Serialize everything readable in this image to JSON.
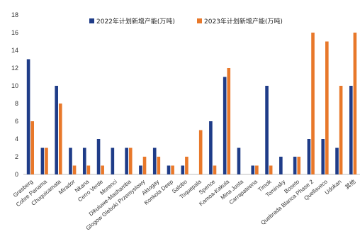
{
  "chart_data": {
    "type": "bar",
    "categories": [
      "Grasberg",
      "Cobre Panama",
      "Chuquicamata",
      "Mirador",
      "Nkana",
      "Cerro Verde",
      "Morenci",
      "Dikuluwe-Mashamba",
      "Glogow Gleboki Przemyslowy",
      "Aktogay",
      "Konkola Deep",
      "Salobo",
      "Toquepala",
      "Spence",
      "Kamoa-Kakula",
      "Mina Justa",
      "Carrapateena",
      "Timok",
      "Tominsky",
      "Boseto",
      "Quebrada Blanca Phase 2",
      "Quellaveco",
      "Udokan",
      "其他"
    ],
    "series": [
      {
        "name": "2022年计划新增产能(万吨)",
        "color": "#1f3c88",
        "values": [
          13,
          3,
          10,
          3,
          3,
          4,
          3,
          3,
          1,
          3,
          1,
          1,
          0,
          6,
          11,
          3,
          1,
          10,
          2,
          2,
          4,
          4,
          3,
          10
        ]
      },
      {
        "name": "2023年计划新增产能(万吨)",
        "color": "#e8782a",
        "values": [
          6,
          3,
          8,
          1,
          1,
          1,
          0,
          3,
          2,
          2,
          1,
          2,
          5,
          1,
          12,
          0,
          1,
          1,
          0,
          2,
          16,
          15,
          10,
          16
        ]
      }
    ],
    "ylim": [
      0,
      18
    ],
    "yticks": [
      0,
      2,
      4,
      6,
      8,
      10,
      12,
      14,
      16,
      18
    ],
    "grid": false,
    "legend": "top"
  }
}
